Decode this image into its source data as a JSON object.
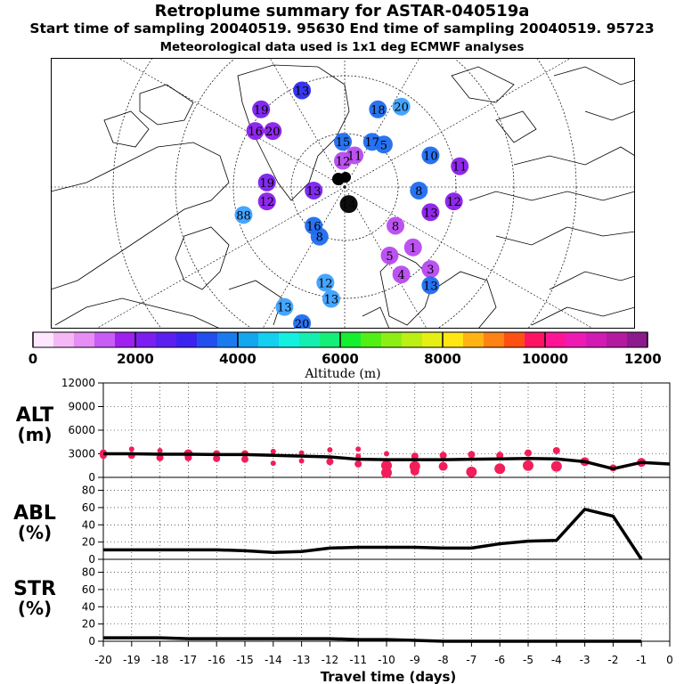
{
  "header": {
    "title": "Retroplume summary for ASTAR-040519a",
    "line2": "Start time of sampling 20040519. 95630     End time of sampling 20040519. 95723",
    "line3": "Meteorological data used is 1x1 deg ECMWF analyses"
  },
  "map": {
    "plume_labels": [
      {
        "text": "13",
        "lon": 0.43,
        "lat": 0.12,
        "c": "#2b2bef"
      },
      {
        "text": "19",
        "lon": 0.36,
        "lat": 0.19,
        "c": "#7a1fef"
      },
      {
        "text": "20",
        "lon": 0.6,
        "lat": 0.18,
        "c": "#3ca0ff"
      },
      {
        "text": "18",
        "lon": 0.56,
        "lat": 0.19,
        "c": "#1e6cf0"
      },
      {
        "text": "16",
        "lon": 0.35,
        "lat": 0.27,
        "c": "#8a1dea"
      },
      {
        "text": "20",
        "lon": 0.38,
        "lat": 0.27,
        "c": "#8a1dea"
      },
      {
        "text": "15",
        "lon": 0.5,
        "lat": 0.31,
        "c": "#1e6cf0"
      },
      {
        "text": "17",
        "lon": 0.55,
        "lat": 0.31,
        "c": "#1e6cf0"
      },
      {
        "text": "5",
        "lon": 0.57,
        "lat": 0.32,
        "c": "#1e6cf0"
      },
      {
        "text": "10",
        "lon": 0.65,
        "lat": 0.36,
        "c": "#1e6cf0"
      },
      {
        "text": "12",
        "lon": 0.5,
        "lat": 0.38,
        "c": "#b84af0"
      },
      {
        "text": "11",
        "lon": 0.52,
        "lat": 0.36,
        "c": "#b84af0"
      },
      {
        "text": "11",
        "lon": 0.7,
        "lat": 0.4,
        "c": "#8a1dea"
      },
      {
        "text": "19",
        "lon": 0.37,
        "lat": 0.46,
        "c": "#7a1fef"
      },
      {
        "text": "13",
        "lon": 0.45,
        "lat": 0.49,
        "c": "#7a1fef"
      },
      {
        "text": "12",
        "lon": 0.37,
        "lat": 0.53,
        "c": "#8a1dea"
      },
      {
        "text": "8",
        "lon": 0.63,
        "lat": 0.49,
        "c": "#1e6cf0"
      },
      {
        "text": "12",
        "lon": 0.69,
        "lat": 0.53,
        "c": "#8a1dea"
      },
      {
        "text": "13",
        "lon": 0.65,
        "lat": 0.57,
        "c": "#8a1dea"
      },
      {
        "text": "16",
        "lon": 0.45,
        "lat": 0.62,
        "c": "#1e6cf0"
      },
      {
        "text": "88",
        "lon": 0.33,
        "lat": 0.58,
        "c": "#3ca0ff"
      },
      {
        "text": "8",
        "lon": 0.46,
        "lat": 0.66,
        "c": "#1e6cf0"
      },
      {
        "text": "14",
        "lon": 0.51,
        "lat": 0.54,
        "c": "#000000"
      },
      {
        "text": "8",
        "lon": 0.59,
        "lat": 0.62,
        "c": "#b84af0"
      },
      {
        "text": "1",
        "lon": 0.62,
        "lat": 0.7,
        "c": "#b84af0"
      },
      {
        "text": "5",
        "lon": 0.58,
        "lat": 0.73,
        "c": "#b84af0"
      },
      {
        "text": "4",
        "lon": 0.6,
        "lat": 0.8,
        "c": "#b84af0"
      },
      {
        "text": "3",
        "lon": 0.65,
        "lat": 0.78,
        "c": "#b84af0"
      },
      {
        "text": "12",
        "lon": 0.47,
        "lat": 0.83,
        "c": "#3ca0ff"
      },
      {
        "text": "13",
        "lon": 0.48,
        "lat": 0.89,
        "c": "#3ca0ff"
      },
      {
        "text": "13",
        "lon": 0.4,
        "lat": 0.92,
        "c": "#3ca0ff"
      },
      {
        "text": "20",
        "lon": 0.43,
        "lat": 0.98,
        "c": "#1e6cf0"
      },
      {
        "text": "13",
        "lon": 0.65,
        "lat": 0.84,
        "c": "#1e6cf0"
      }
    ]
  },
  "colorbar": {
    "colors": [
      "#ffe6ff",
      "#f5b8f5",
      "#e68ef5",
      "#c95cf5",
      "#a020f0",
      "#7d1ef0",
      "#5b1fef",
      "#3b24ef",
      "#2250ef",
      "#1a7bef",
      "#14a6ef",
      "#14cfef",
      "#14efe0",
      "#14efb0",
      "#14ef78",
      "#14ef30",
      "#52ef14",
      "#8cef14",
      "#bcef14",
      "#e6ef14",
      "#ffe614",
      "#ffb414",
      "#ff8214",
      "#ff5014",
      "#ff1464",
      "#ff1496",
      "#ef1ab4",
      "#d21ab4",
      "#b41aa0",
      "#8c1a8c"
    ],
    "ticks": [
      "0",
      "2000",
      "4000",
      "6000",
      "8000",
      "10000",
      "12000"
    ],
    "label": "Altitude (m)"
  },
  "panels": {
    "alt_label": [
      "ALT",
      "(m)"
    ],
    "abl_label": [
      "ABL",
      "(%)"
    ],
    "str_label": [
      "STR",
      "(%)"
    ],
    "alt_ticks": [
      "12000",
      "9000",
      "6000",
      "3000",
      "0"
    ],
    "pct_ticks": [
      "80",
      "60",
      "40",
      "20",
      "0"
    ],
    "x_ticks": [
      "-20",
      "-19",
      "-18",
      "-17",
      "-16",
      "-15",
      "-14",
      "-13",
      "-12",
      "-11",
      "-10",
      "-9",
      "-8",
      "-7",
      "-6",
      "-5",
      "-4",
      "-3",
      "-2",
      "-1",
      "0"
    ],
    "x_label": "Travel time (days)"
  },
  "chart_data": [
    {
      "type": "line",
      "title": "ALT (m)",
      "xlabel": "Travel time (days)",
      "ylabel": "ALT (m)",
      "x": [
        -20,
        -19,
        -18,
        -17,
        -16,
        -15,
        -14,
        -13,
        -12,
        -11,
        -10,
        -9,
        -8,
        -7,
        -6,
        -5,
        -4,
        -3,
        -2,
        -1,
        0
      ],
      "series": [
        {
          "name": "mean altitude",
          "values": [
            3000,
            3000,
            2950,
            2950,
            2900,
            2900,
            2800,
            2700,
            2600,
            2300,
            2250,
            2250,
            2250,
            2300,
            2350,
            2400,
            2350,
            2000,
            1100,
            1900,
            1700
          ]
        }
      ],
      "scatter": [
        {
          "x": -20,
          "y": 3100,
          "s": 3
        },
        {
          "x": -20,
          "y": 2800,
          "s": 3
        },
        {
          "x": -19,
          "y": 3600,
          "s": 2
        },
        {
          "x": -19,
          "y": 2800,
          "s": 3
        },
        {
          "x": -18,
          "y": 3400,
          "s": 2
        },
        {
          "x": -18,
          "y": 2500,
          "s": 3
        },
        {
          "x": -17,
          "y": 3000,
          "s": 4
        },
        {
          "x": -17,
          "y": 2500,
          "s": 3
        },
        {
          "x": -16,
          "y": 3000,
          "s": 3
        },
        {
          "x": -16,
          "y": 2400,
          "s": 3
        },
        {
          "x": -15,
          "y": 3000,
          "s": 3
        },
        {
          "x": -15,
          "y": 2300,
          "s": 3
        },
        {
          "x": -14,
          "y": 3300,
          "s": 2
        },
        {
          "x": -14,
          "y": 1800,
          "s": 2
        },
        {
          "x": -13,
          "y": 3100,
          "s": 2
        },
        {
          "x": -13,
          "y": 2100,
          "s": 2
        },
        {
          "x": -12,
          "y": 3500,
          "s": 2
        },
        {
          "x": -12,
          "y": 2000,
          "s": 3
        },
        {
          "x": -11,
          "y": 3600,
          "s": 2
        },
        {
          "x": -11,
          "y": 2700,
          "s": 2
        },
        {
          "x": -11,
          "y": 1700,
          "s": 3
        },
        {
          "x": -10,
          "y": 3000,
          "s": 2
        },
        {
          "x": -10,
          "y": 1500,
          "s": 5
        },
        {
          "x": -10,
          "y": 600,
          "s": 5
        },
        {
          "x": -9,
          "y": 2700,
          "s": 3
        },
        {
          "x": -9,
          "y": 1400,
          "s": 5
        },
        {
          "x": -9,
          "y": 800,
          "s": 4
        },
        {
          "x": -8,
          "y": 2800,
          "s": 3
        },
        {
          "x": -8,
          "y": 1400,
          "s": 4
        },
        {
          "x": -7,
          "y": 2900,
          "s": 3
        },
        {
          "x": -7,
          "y": 700,
          "s": 5
        },
        {
          "x": -6,
          "y": 2800,
          "s": 3
        },
        {
          "x": -6,
          "y": 1100,
          "s": 5
        },
        {
          "x": -5,
          "y": 3100,
          "s": 3
        },
        {
          "x": -5,
          "y": 1500,
          "s": 5
        },
        {
          "x": -4,
          "y": 3400,
          "s": 3
        },
        {
          "x": -4,
          "y": 1400,
          "s": 5
        },
        {
          "x": -3,
          "y": 2000,
          "s": 4
        },
        {
          "x": -2,
          "y": 1200,
          "s": 3
        },
        {
          "x": -1,
          "y": 1900,
          "s": 4
        }
      ],
      "ylim": [
        0,
        12000
      ],
      "xlim": [
        -20,
        0
      ]
    },
    {
      "type": "line",
      "title": "ABL (%)",
      "xlabel": "Travel time (days)",
      "ylabel": "ABL (%)",
      "x": [
        -20,
        -19,
        -18,
        -17,
        -16,
        -15,
        -14,
        -13,
        -12,
        -11,
        -10,
        -9,
        -8,
        -7,
        -6,
        -5,
        -4,
        -3,
        -2,
        -1
      ],
      "series": [
        {
          "name": "ABL fraction",
          "values": [
            11,
            11,
            11,
            11,
            11,
            10,
            8,
            9,
            13,
            14,
            14,
            14,
            13,
            13,
            18,
            21,
            22,
            58,
            50,
            0
          ]
        }
      ],
      "ylim": [
        0,
        95
      ],
      "xlim": [
        -20,
        0
      ]
    },
    {
      "type": "line",
      "title": "STR (%)",
      "xlabel": "Travel time (days)",
      "ylabel": "STR (%)",
      "x": [
        -20,
        -19,
        -18,
        -17,
        -16,
        -15,
        -14,
        -13,
        -12,
        -11,
        -10,
        -9,
        -8,
        -7,
        -6,
        -5,
        -4,
        -3,
        -2,
        -1
      ],
      "series": [
        {
          "name": "stratosphere fraction",
          "values": [
            4,
            4,
            4,
            3,
            3,
            3,
            3,
            3,
            3,
            2,
            2,
            1,
            0,
            0,
            0,
            0,
            0,
            0,
            0,
            0
          ]
        }
      ],
      "ylim": [
        0,
        95
      ],
      "xlim": [
        -20,
        0
      ]
    }
  ]
}
